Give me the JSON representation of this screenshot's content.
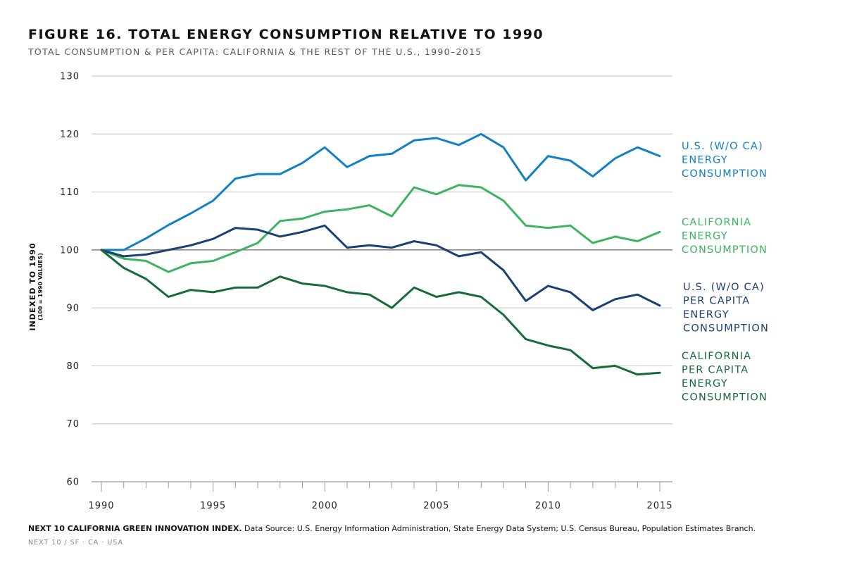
{
  "figure": {
    "title": "FIGURE 16. TOTAL ENERGY CONSUMPTION RELATIVE TO 1990",
    "subtitle": "TOTAL CONSUMPTION & PER CAPITA: CALIFORNIA & THE REST OF THE U.S., 1990–2015",
    "source_bold": "NEXT 10 CALIFORNIA GREEN INNOVATION INDEX.",
    "source_text": " Data Source: U.S. Energy Information Administration, State Energy Data System; U.S. Census Bureau, Population Estimates Branch.",
    "footer": "NEXT 10  /  SF · CA · USA"
  },
  "chart_data": {
    "type": "line",
    "ylabel": "INDEXED TO 1990",
    "ylabel_sub": "(100 = 1990 VALUES)",
    "xlabel": "",
    "ylim": [
      60,
      130
    ],
    "yticks": [
      60,
      70,
      80,
      90,
      100,
      110,
      120,
      130
    ],
    "xlim": [
      1990,
      2015
    ],
    "xticks": [
      1990,
      1995,
      2000,
      2005,
      2010,
      2015
    ],
    "baseline": 100,
    "grid": true,
    "legend_placement": "right (direct labels)",
    "x": [
      1990,
      1991,
      1992,
      1993,
      1994,
      1995,
      1996,
      1997,
      1998,
      1999,
      2000,
      2001,
      2002,
      2003,
      2004,
      2005,
      2006,
      2007,
      2008,
      2009,
      2010,
      2011,
      2012,
      2013,
      2014,
      2015
    ],
    "series": [
      {
        "name": "U.S. (W/O CA) ENERGY CONSUMPTION",
        "label_lines": [
          "U.S. (W/O CA)",
          "ENERGY",
          "CONSUMPTION"
        ],
        "color": "#1281c4",
        "values": [
          100,
          100,
          102,
          104.3,
          106.3,
          108.5,
          112.3,
          113.1,
          113.1,
          115.0,
          117.7,
          114.3,
          116.2,
          116.6,
          118.9,
          119.3,
          118.1,
          120.0,
          117.7,
          112.0,
          116.2,
          115.4,
          112.7,
          115.8,
          117.7,
          116.2
        ]
      },
      {
        "name": "CALIFORNIA ENERGY CONSUMPTION",
        "label_lines": [
          "CALIFORNIA",
          "ENERGY",
          "CONSUMPTION"
        ],
        "color": "#3cb461",
        "values": [
          100,
          98.5,
          98.1,
          96.2,
          97.7,
          98.1,
          99.6,
          101.2,
          105.0,
          105.4,
          106.6,
          107.0,
          107.7,
          105.8,
          110.8,
          109.6,
          111.2,
          110.8,
          108.5,
          104.2,
          103.8,
          104.2,
          101.2,
          102.3,
          101.5,
          103.1
        ]
      },
      {
        "name": "U.S. (W/O CA) PER CAPITA ENERGY CONSUMPTION",
        "label_lines": [
          "U.S. (W/O CA)",
          "PER CAPITA",
          "ENERGY",
          "CONSUMPTION"
        ],
        "color": "#1c3f74",
        "values": [
          100,
          98.9,
          99.2,
          100.0,
          100.8,
          101.9,
          103.8,
          103.5,
          102.3,
          103.1,
          104.2,
          100.4,
          100.8,
          100.4,
          101.5,
          100.8,
          98.9,
          99.6,
          96.5,
          91.2,
          93.8,
          92.7,
          89.6,
          91.5,
          92.3,
          90.4
        ]
      },
      {
        "name": "CALIFORNIA PER CAPITA ENERGY CONSUMPTION",
        "label_lines": [
          "CALIFORNIA",
          "PER CAPITA",
          "ENERGY",
          "CONSUMPTION"
        ],
        "color": "#176b3a",
        "values": [
          100,
          96.9,
          95.0,
          91.9,
          93.1,
          92.7,
          93.5,
          93.5,
          95.4,
          94.2,
          93.8,
          92.7,
          92.3,
          90.0,
          93.5,
          91.9,
          92.7,
          91.9,
          88.8,
          84.6,
          83.5,
          82.7,
          79.6,
          80.0,
          78.5,
          78.8
        ]
      }
    ]
  }
}
